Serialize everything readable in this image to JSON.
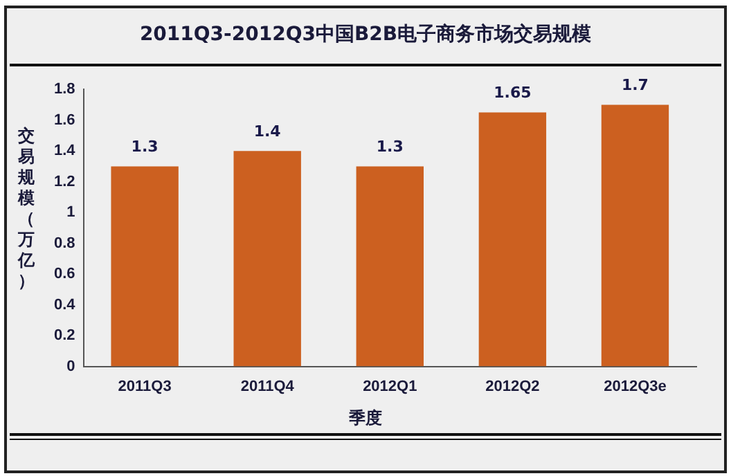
{
  "chart_data": {
    "type": "bar",
    "title": "2011Q3-2012Q3中国B2B电子商务市场交易规模",
    "xlabel": "季度",
    "ylabel": "交易规模（万亿）",
    "categories": [
      "2011Q3",
      "2011Q4",
      "2012Q1",
      "2012Q2",
      "2012Q3e"
    ],
    "values": [
      1.3,
      1.4,
      1.3,
      1.65,
      1.7
    ],
    "color": "#cc6020",
    "ylim": [
      0,
      1.8
    ],
    "yticks": [
      0,
      0.2,
      0.4,
      0.6,
      0.8,
      1,
      1.2,
      1.4,
      1.6,
      1.8
    ],
    "grid": false,
    "legend": false,
    "data_labels": true
  }
}
